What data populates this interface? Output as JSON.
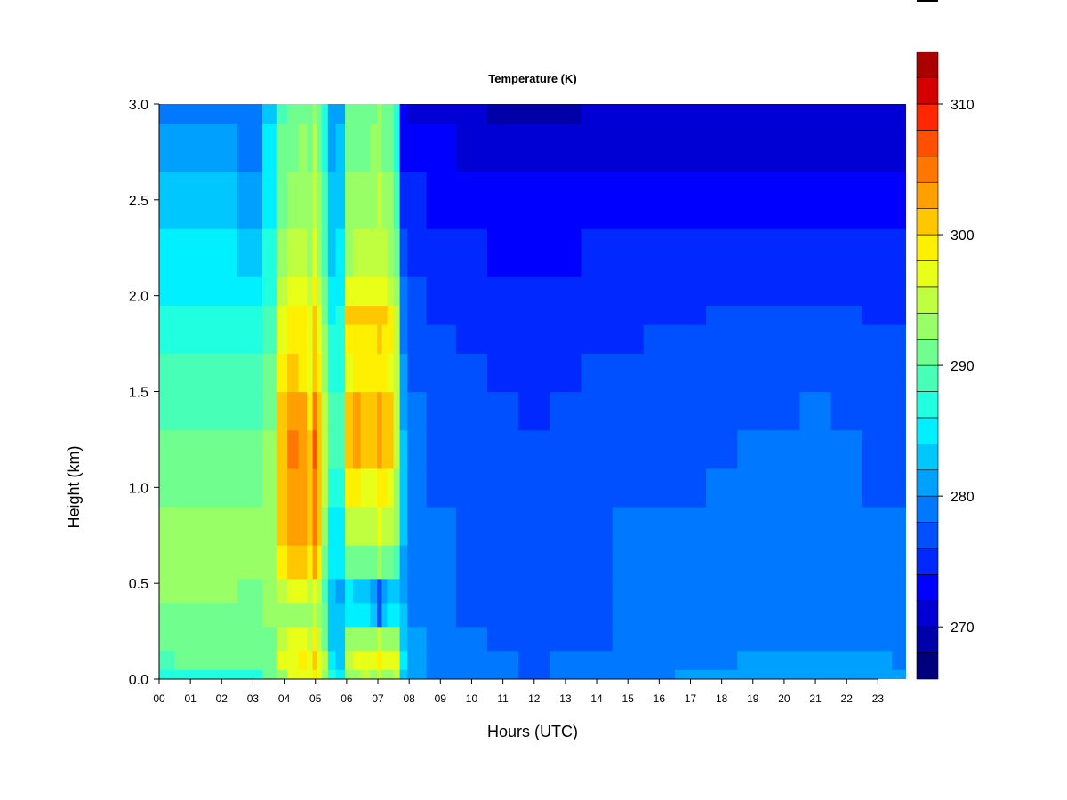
{
  "chart_data": {
    "type": "heatmap",
    "title": "Temperature (K)",
    "xlabel": "Hours (UTC)",
    "ylabel": "Height (km)",
    "x_tick_labels": [
      "00",
      "01",
      "02",
      "03",
      "04",
      "05",
      "06",
      "07",
      "08",
      "09",
      "10",
      "11",
      "12",
      "13",
      "14",
      "15",
      "16",
      "17",
      "18",
      "19",
      "20",
      "21",
      "22",
      "23"
    ],
    "y_tick_labels": [
      "0.0",
      "0.5",
      "1.0",
      "1.5",
      "2.0",
      "2.5",
      "3.0"
    ],
    "xlim": [
      0,
      23.9
    ],
    "ylim": [
      0,
      3.0
    ],
    "colorbar": {
      "range": [
        266,
        310
      ],
      "step": 2,
      "tick_labels": [
        "270",
        "280",
        "290",
        "300",
        "310"
      ],
      "colors": [
        "#00007F",
        "#0000A8",
        "#0000D4",
        "#0000FF",
        "#0028FF",
        "#0050FF",
        "#0078FF",
        "#00A0FF",
        "#00C8FF",
        "#00F0FF",
        "#20FFDF",
        "#48FFB7",
        "#70FF8F",
        "#98FF67",
        "#C0FF3F",
        "#E8FF17",
        "#FFEF00",
        "#FFC700",
        "#FF9F00",
        "#FF7700",
        "#FF4F00",
        "#FF2700",
        "#D40000",
        "#AA0000"
      ]
    },
    "x_hours": [
      0,
      1,
      2,
      3,
      3.6,
      3.9,
      4.3,
      4.6,
      4.85,
      4.97,
      5.1,
      5.3,
      5.5,
      5.8,
      6.1,
      6.3,
      6.6,
      6.9,
      7.05,
      7.2,
      7.4,
      7.6,
      7.8,
      8.1,
      9,
      10,
      11,
      12,
      13,
      14,
      15,
      16,
      17,
      18,
      19,
      20,
      21,
      22,
      23,
      23.9
    ],
    "y_heights_km": [
      0.0,
      0.1,
      0.2,
      0.35,
      0.45,
      0.6,
      0.8,
      1.0,
      1.2,
      1.4,
      1.6,
      1.8,
      1.9,
      2.0,
      2.2,
      2.5,
      2.8,
      3.0
    ],
    "temperature_K": [
      [
        286,
        287,
        287,
        287,
        290,
        293,
        296,
        297,
        296,
        299,
        296,
        293,
        286,
        284,
        292,
        293,
        294,
        293,
        295,
        293,
        293,
        294,
        283,
        281,
        279,
        278,
        278,
        277,
        278,
        278,
        279,
        279,
        280,
        281,
        281,
        281,
        281,
        281,
        280,
        280
      ],
      [
        289,
        290,
        290,
        290,
        291,
        296,
        297,
        298,
        297,
        300,
        297,
        294,
        284,
        283,
        295,
        296,
        297,
        296,
        299,
        296,
        296,
        296,
        284,
        281,
        279,
        278,
        278,
        277,
        278,
        278,
        278,
        278,
        279,
        279,
        280,
        280,
        280,
        280,
        280,
        279
      ],
      [
        290,
        290,
        290,
        290,
        291,
        295,
        297,
        296,
        295,
        298,
        295,
        291,
        283,
        283,
        292,
        293,
        293,
        292,
        294,
        293,
        293,
        292,
        283,
        280,
        278,
        278,
        277,
        277,
        277,
        277,
        278,
        278,
        278,
        279,
        279,
        279,
        279,
        279,
        279,
        278
      ],
      [
        291,
        291,
        291,
        291,
        292,
        293,
        293,
        293,
        293,
        295,
        293,
        290,
        283,
        282,
        285,
        284,
        284,
        282,
        276,
        283,
        284,
        285,
        282,
        279,
        278,
        277,
        277,
        277,
        277,
        277,
        278,
        278,
        278,
        278,
        279,
        279,
        279,
        279,
        278,
        278
      ],
      [
        292,
        292,
        292,
        291,
        292,
        295,
        297,
        296,
        294,
        296,
        294,
        289,
        283,
        281,
        284,
        283,
        282,
        281,
        276,
        281,
        282,
        283,
        280,
        279,
        278,
        277,
        277,
        277,
        277,
        277,
        278,
        278,
        278,
        278,
        278,
        279,
        279,
        279,
        278,
        278
      ],
      [
        292,
        292,
        292,
        292,
        292,
        299,
        301,
        300,
        298,
        303,
        298,
        291,
        284,
        284,
        291,
        291,
        290,
        290,
        293,
        291,
        290,
        289,
        281,
        278,
        278,
        277,
        277,
        277,
        277,
        277,
        278,
        278,
        278,
        278,
        278,
        278,
        278,
        279,
        278,
        278
      ],
      [
        292,
        292,
        292,
        292,
        292,
        300,
        302,
        302,
        300,
        304,
        300,
        293,
        285,
        285,
        295,
        295,
        294,
        294,
        296,
        295,
        294,
        292,
        282,
        278,
        278,
        277,
        277,
        276,
        277,
        277,
        278,
        278,
        278,
        278,
        278,
        278,
        278,
        278,
        278,
        278
      ],
      [
        291,
        291,
        291,
        291,
        292,
        301,
        303,
        303,
        300,
        305,
        301,
        294,
        287,
        287,
        298,
        298,
        297,
        297,
        299,
        298,
        297,
        293,
        282,
        278,
        277,
        277,
        276,
        276,
        276,
        277,
        277,
        277,
        277,
        278,
        278,
        278,
        278,
        278,
        277,
        277
      ],
      [
        290,
        290,
        290,
        290,
        292,
        301,
        304,
        303,
        300,
        306,
        301,
        295,
        288,
        288,
        301,
        302,
        301,
        300,
        302,
        301,
        300,
        295,
        282,
        278,
        277,
        276,
        276,
        276,
        276,
        276,
        277,
        277,
        277,
        277,
        278,
        278,
        278,
        278,
        277,
        277
      ],
      [
        289,
        289,
        289,
        289,
        291,
        300,
        303,
        302,
        299,
        305,
        300,
        294,
        288,
        288,
        301,
        302,
        301,
        300,
        302,
        301,
        300,
        295,
        281,
        278,
        277,
        276,
        276,
        275,
        276,
        276,
        276,
        277,
        277,
        277,
        277,
        277,
        278,
        277,
        277,
        277
      ],
      [
        288,
        288,
        288,
        288,
        290,
        298,
        300,
        299,
        297,
        301,
        298,
        293,
        287,
        287,
        297,
        298,
        298,
        298,
        299,
        298,
        297,
        294,
        280,
        277,
        276,
        276,
        275,
        275,
        275,
        276,
        276,
        276,
        276,
        276,
        277,
        277,
        277,
        277,
        276,
        276
      ],
      [
        287,
        287,
        287,
        287,
        289,
        296,
        299,
        298,
        297,
        300,
        297,
        292,
        286,
        287,
        298,
        299,
        299,
        299,
        300,
        299,
        298,
        294,
        279,
        277,
        276,
        275,
        275,
        275,
        275,
        275,
        275,
        276,
        276,
        276,
        276,
        276,
        276,
        276,
        276,
        276
      ],
      [
        286,
        286,
        286,
        286,
        288,
        296,
        299,
        299,
        297,
        300,
        297,
        291,
        285,
        286,
        300,
        300,
        300,
        300,
        301,
        300,
        299,
        295,
        279,
        276,
        275,
        275,
        275,
        274,
        274,
        275,
        275,
        275,
        275,
        276,
        276,
        276,
        276,
        276,
        275,
        275
      ],
      [
        285,
        285,
        285,
        285,
        287,
        294,
        296,
        296,
        295,
        298,
        295,
        290,
        284,
        285,
        296,
        296,
        296,
        296,
        297,
        296,
        295,
        293,
        278,
        276,
        275,
        274,
        274,
        274,
        274,
        274,
        275,
        275,
        275,
        275,
        275,
        275,
        275,
        275,
        275,
        275
      ],
      [
        284,
        284,
        284,
        283,
        286,
        292,
        294,
        294,
        293,
        296,
        293,
        289,
        283,
        284,
        293,
        294,
        294,
        294,
        295,
        294,
        293,
        291,
        277,
        275,
        274,
        274,
        273,
        273,
        273,
        274,
        274,
        274,
        274,
        274,
        274,
        274,
        274,
        274,
        274,
        274
      ],
      [
        282,
        282,
        282,
        281,
        285,
        291,
        292,
        293,
        292,
        295,
        292,
        288,
        282,
        283,
        292,
        292,
        292,
        293,
        294,
        292,
        292,
        289,
        275,
        274,
        273,
        273,
        272,
        272,
        272,
        273,
        273,
        273,
        273,
        273,
        273,
        273,
        273,
        273,
        273,
        273
      ],
      [
        280,
        280,
        280,
        279,
        284,
        290,
        291,
        292,
        291,
        294,
        291,
        287,
        281,
        282,
        291,
        291,
        291,
        292,
        293,
        291,
        291,
        287,
        273,
        272,
        272,
        271,
        271,
        270,
        270,
        271,
        271,
        271,
        271,
        271,
        271,
        271,
        271,
        271,
        271,
        271
      ],
      [
        279,
        279,
        279,
        278,
        283,
        289,
        290,
        291,
        290,
        293,
        290,
        286,
        280,
        281,
        290,
        290,
        290,
        291,
        292,
        290,
        290,
        286,
        272,
        271,
        271,
        270,
        269,
        269,
        269,
        270,
        270,
        270,
        270,
        270,
        270,
        270,
        270,
        270,
        270,
        270
      ]
    ]
  }
}
